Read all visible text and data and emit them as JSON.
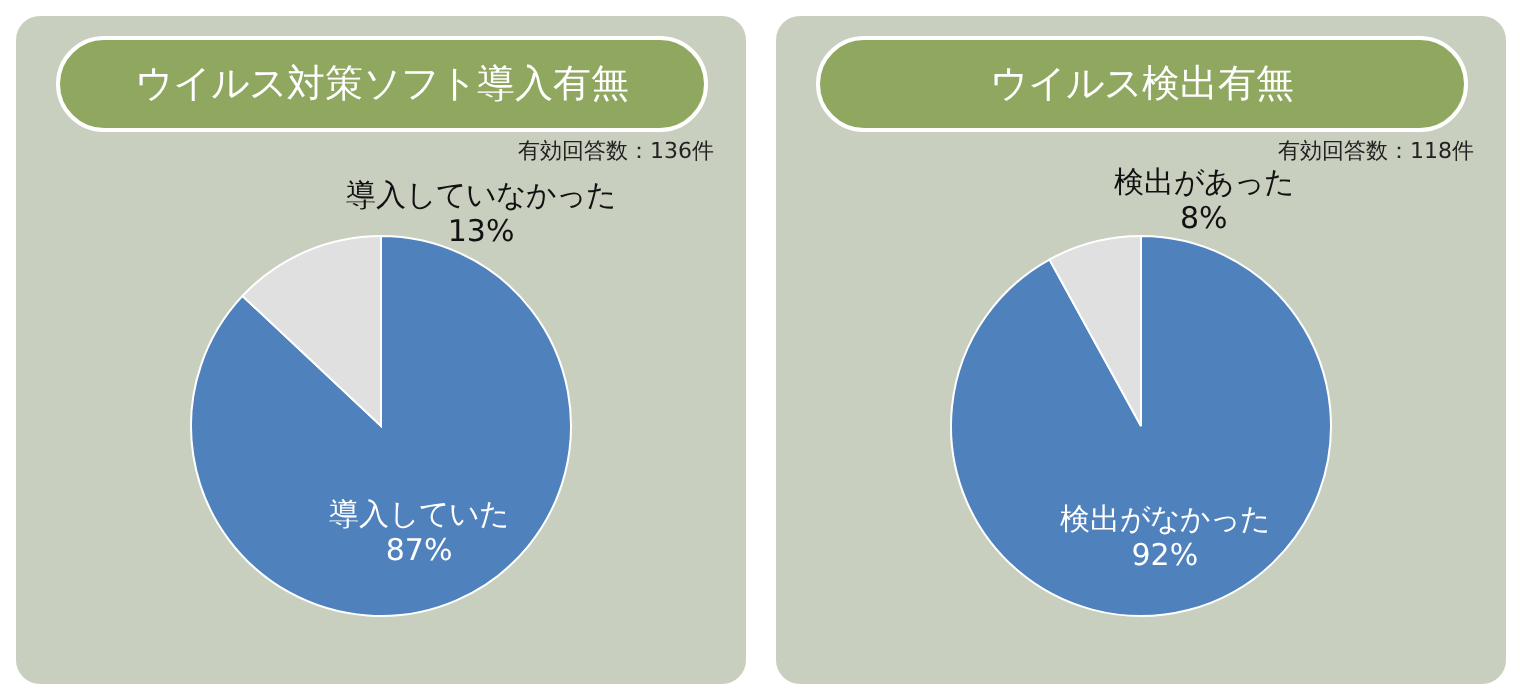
{
  "chart_data": [
    {
      "type": "pie",
      "title": "ウイルス対策ソフト導入有無",
      "subtitle": "有効回答数：136件",
      "categories": [
        "導入していた",
        "導入していなかった"
      ],
      "values": [
        87,
        13
      ],
      "colors": [
        "#4f81bd",
        "#e0e0e0"
      ],
      "value_labels": [
        "87%",
        "13%"
      ]
    },
    {
      "type": "pie",
      "title": "ウイルス検出有無",
      "subtitle": "有効回答数：118件",
      "categories": [
        "検出がなかった",
        "検出があった"
      ],
      "values": [
        92,
        8
      ],
      "colors": [
        "#4f81bd",
        "#e0e0e0"
      ],
      "value_labels": [
        "92%",
        "8%"
      ]
    }
  ]
}
